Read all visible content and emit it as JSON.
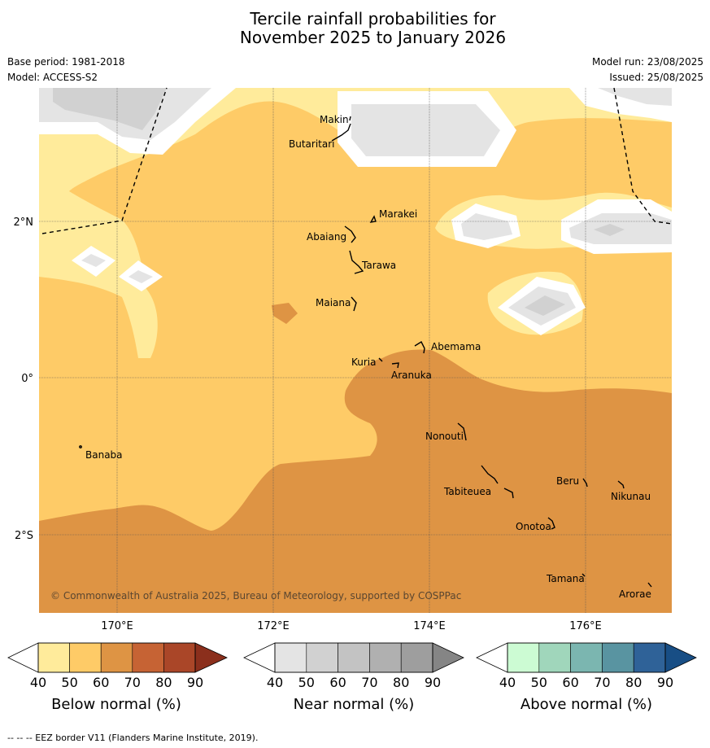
{
  "title_line1": "Tercile rainfall probabilities for",
  "title_line2": "November 2025 to January 2026",
  "base_period": "Base period: 1981-2018",
  "model": "Model: ACCESS-S2",
  "model_run": "Model run: 23/08/2025",
  "issued": "Issued: 25/08/2025",
  "lon_labels": [
    "170°E",
    "172°E",
    "174°E",
    "176°E"
  ],
  "lat_labels": [
    "2°N",
    "0°",
    "2°S"
  ],
  "places": [
    "Makin",
    "Butaritari",
    "Marakei",
    "Abaiang",
    "Tarawa",
    "Maiana",
    "Abemama",
    "Kuria",
    "Aranuka",
    "Banaba",
    "Nonouti",
    "Beru",
    "Nikunau",
    "Tabiteuea",
    "Onotoa",
    "Tamana",
    "Arorae"
  ],
  "copyright": "© Commonwealth of Australia 2025, Bureau of Meteorology, supported by COSPPac",
  "colorbars": [
    {
      "title": "Below normal (%)",
      "ticks": [
        "40",
        "50",
        "60",
        "70",
        "80",
        "90"
      ],
      "colors": [
        "#ffeb9b",
        "#fecb67",
        "#de9444",
        "#c66334",
        "#aa4628",
        "#8b2f1c"
      ]
    },
    {
      "title": "Near normal (%)",
      "ticks": [
        "40",
        "50",
        "60",
        "70",
        "80",
        "90"
      ],
      "colors": [
        "#e4e4e4",
        "#d1d1d1",
        "#c3c3c3",
        "#b0b0b0",
        "#9e9e9e",
        "#858585"
      ]
    },
    {
      "title": "Above normal (%)",
      "ticks": [
        "40",
        "50",
        "60",
        "70",
        "80",
        "90"
      ],
      "colors": [
        "#ccfbd3",
        "#a0d6bb",
        "#7bb6b0",
        "#5994a1",
        "#2f6298",
        "#184e85"
      ]
    }
  ],
  "footer": "--  --  -- EEZ border V11 (Flanders Marine Institute, 2019)."
}
